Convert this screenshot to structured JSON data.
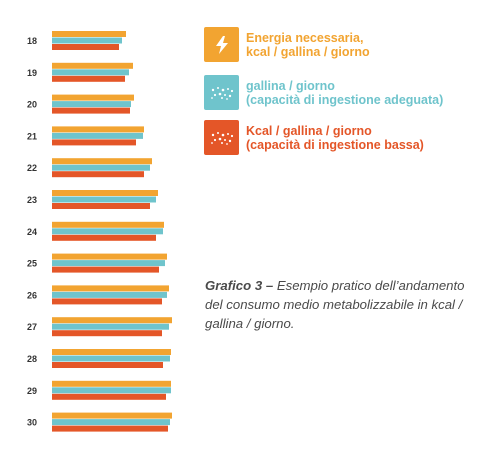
{
  "chart_data": {
    "type": "bar",
    "orientation": "horizontal",
    "categories": [
      "18",
      "19",
      "20",
      "21",
      "22",
      "23",
      "24",
      "25",
      "26",
      "27",
      "28",
      "29",
      "30"
    ],
    "series": [
      {
        "name": "Energia necessaria, kcal / gallina / giorno",
        "color": "#f2a431",
        "values": [
          74,
          81,
          82,
          92,
          100,
          106,
          112,
          115,
          117,
          120,
          119,
          119,
          120
        ]
      },
      {
        "name": "gallina / giorno (capacità di ingestione adeguata)",
        "color": "#6fc4cc",
        "values": [
          70,
          77,
          79,
          91,
          98,
          104,
          111,
          113,
          115,
          117,
          118,
          119,
          118
        ]
      },
      {
        "name": "Kcal / gallina / giorno (capacità di ingestione bassa)",
        "color": "#e45628",
        "values": [
          67,
          73,
          78,
          84,
          92,
          98,
          104,
          107,
          110,
          110,
          111,
          114,
          116
        ]
      }
    ],
    "legend_position": "top-right",
    "grid": false
  },
  "legend": [
    {
      "line1": "Energia necessaria,",
      "line2": "kcal / gallina / giorno",
      "color": "#f2a431",
      "icon": "lightning-icon"
    },
    {
      "line1": "gallina / giorno",
      "line2": "(capacità di ingestione adeguata)",
      "color": "#6fc4cc",
      "icon": "grain-dots-icon"
    },
    {
      "line1": "Kcal / gallina / giorno",
      "line2": "(capacità di ingestione bassa)",
      "color": "#e45628",
      "icon": "grain-dots-icon"
    }
  ],
  "caption": {
    "bold": "Grafico 3 –",
    "text": " Esempio pratico dell’andamento del consumo medio metabolizzabile in kcal / gallina / giorno."
  }
}
